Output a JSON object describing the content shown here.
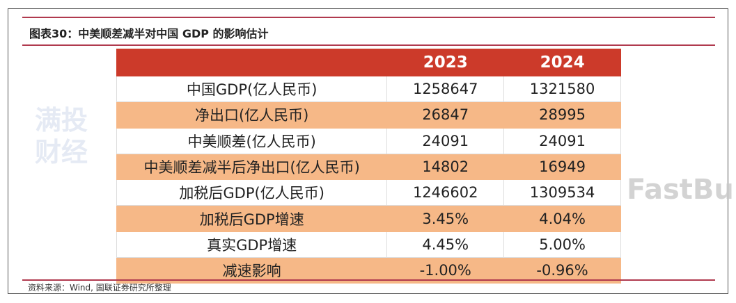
{
  "title": "图表30：中美顺差减半对中国 GDP 的影响估计",
  "table": {
    "headers": [
      "",
      "2023",
      "2024"
    ],
    "rows": [
      {
        "label": "中国GDP(亿人民币)",
        "v2023": "1258647",
        "v2024": "1321580"
      },
      {
        "label": "净出口(亿人民币)",
        "v2023": "26847",
        "v2024": "28995"
      },
      {
        "label": "中美顺差(亿人民币)",
        "v2023": "24091",
        "v2024": "24091"
      },
      {
        "label": "中美顺差减半后净出口(亿人民币)",
        "v2023": "14802",
        "v2024": "16949"
      },
      {
        "label": "加税后GDP(亿人民币)",
        "v2023": "1246602",
        "v2024": "1309534"
      },
      {
        "label": "加税后GDP增速",
        "v2023": "3.45%",
        "v2024": "4.04%"
      },
      {
        "label": "真实GDP增速",
        "v2023": "4.45%",
        "v2024": "5.00%"
      },
      {
        "label": "减速影响",
        "v2023": "-1.00%",
        "v2024": "-0.96%"
      }
    ]
  },
  "source": "资料来源：Wind, 国联证券研究所整理",
  "watermarks": [
    "满投财经",
    "FastBull"
  ],
  "colors": {
    "header": "#cc3a2a",
    "band": "#f6b887",
    "rule": "#b03a4e"
  }
}
